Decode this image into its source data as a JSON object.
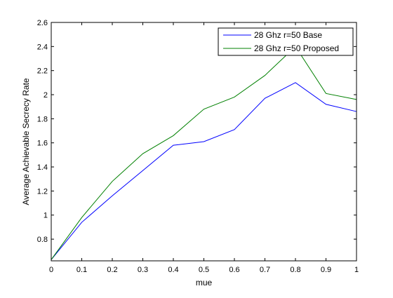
{
  "chart_data": {
    "type": "line",
    "title": "",
    "xlabel": "mue",
    "ylabel": "Average Achievable Secrecy Rate",
    "x": [
      0,
      0.1,
      0.2,
      0.3,
      0.4,
      0.5,
      0.6,
      0.7,
      0.8,
      0.9,
      1
    ],
    "xlim": [
      0,
      1
    ],
    "ylim": [
      0.62,
      2.6
    ],
    "xticks": [
      0,
      0.1,
      0.2,
      0.3,
      0.4,
      0.5,
      0.6,
      0.7,
      0.8,
      0.9,
      1
    ],
    "xtick_labels": [
      "0",
      "0.1",
      "0.2",
      "0.3",
      "0.4",
      "0.5",
      "0.6",
      "0.7",
      "0.8",
      "0.9",
      "1"
    ],
    "yticks": [
      0.8,
      1,
      1.2,
      1.4,
      1.6,
      1.8,
      2,
      2.2,
      2.4,
      2.6
    ],
    "ytick_labels": [
      "0.8",
      "1",
      "1.2",
      "1.4",
      "1.6",
      "1.8",
      "2",
      "2.2",
      "2.4",
      "2.6"
    ],
    "grid": false,
    "legend_position": "top-right",
    "series": [
      {
        "name": "28 Ghz r=50 Base",
        "color": "#0000ff",
        "values": [
          0.63,
          0.94,
          1.16,
          1.37,
          1.58,
          1.61,
          1.71,
          1.97,
          2.1,
          1.92,
          1.86
        ]
      },
      {
        "name": "28 Ghz r=50 Proposed",
        "color": "#008000",
        "values": [
          0.63,
          0.98,
          1.28,
          1.51,
          1.66,
          1.88,
          1.98,
          2.16,
          2.4,
          2.01,
          1.96
        ]
      }
    ]
  }
}
